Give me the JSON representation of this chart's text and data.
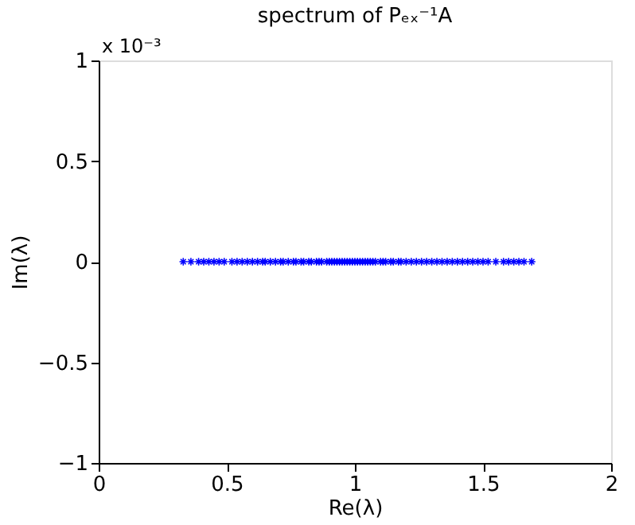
{
  "chart_data": {
    "type": "scatter",
    "title": "spectrum of Pₑₓ⁻¹A",
    "xlabel": "Re(λ)",
    "ylabel": "Im(λ)",
    "annotations": [
      "x 10⁻³"
    ],
    "x": [
      0.33,
      0.36,
      0.39,
      0.41,
      0.43,
      0.45,
      0.47,
      0.49,
      0.52,
      0.54,
      0.56,
      0.58,
      0.6,
      0.62,
      0.64,
      0.65,
      0.67,
      0.69,
      0.71,
      0.72,
      0.74,
      0.76,
      0.77,
      0.79,
      0.8,
      0.82,
      0.83,
      0.85,
      0.86,
      0.87,
      0.89,
      0.9,
      0.91,
      0.92,
      0.93,
      0.94,
      0.95,
      0.96,
      0.97,
      0.98,
      0.99,
      1.0,
      1.01,
      1.02,
      1.03,
      1.04,
      1.05,
      1.06,
      1.07,
      1.08,
      1.1,
      1.11,
      1.12,
      1.14,
      1.15,
      1.17,
      1.18,
      1.2,
      1.22,
      1.24,
      1.26,
      1.28,
      1.3,
      1.32,
      1.34,
      1.36,
      1.38,
      1.4,
      1.42,
      1.44,
      1.46,
      1.48,
      1.5,
      1.52,
      1.55,
      1.58,
      1.6,
      1.62,
      1.64,
      1.66,
      1.69
    ],
    "series": [
      {
        "color": "#0000ff",
        "values": [
          0,
          0,
          0,
          0,
          0,
          0,
          0,
          0,
          0,
          0,
          0,
          0,
          0,
          0,
          0,
          0,
          0,
          0,
          0,
          0,
          0,
          0,
          0,
          0,
          0,
          0,
          0,
          0,
          0,
          0,
          0,
          0,
          0,
          0,
          0,
          0,
          0,
          0,
          0,
          0,
          0,
          0,
          0,
          0,
          0,
          0,
          0,
          0,
          0,
          0,
          0,
          0,
          0,
          0,
          0,
          0,
          0,
          0,
          0,
          0,
          0,
          0,
          0,
          0,
          0,
          0,
          0,
          0,
          0,
          0,
          0,
          0,
          0,
          0,
          0,
          0,
          0,
          0,
          0,
          0,
          0
        ]
      }
    ],
    "marker": "cross",
    "grid": false,
    "xlim": [
      0,
      2
    ],
    "xticks": [
      0,
      0.5,
      1,
      1.5,
      2
    ],
    "ylim": [
      -1,
      1
    ],
    "yticks": [
      -1,
      -0.5,
      0,
      0.5,
      1
    ]
  }
}
